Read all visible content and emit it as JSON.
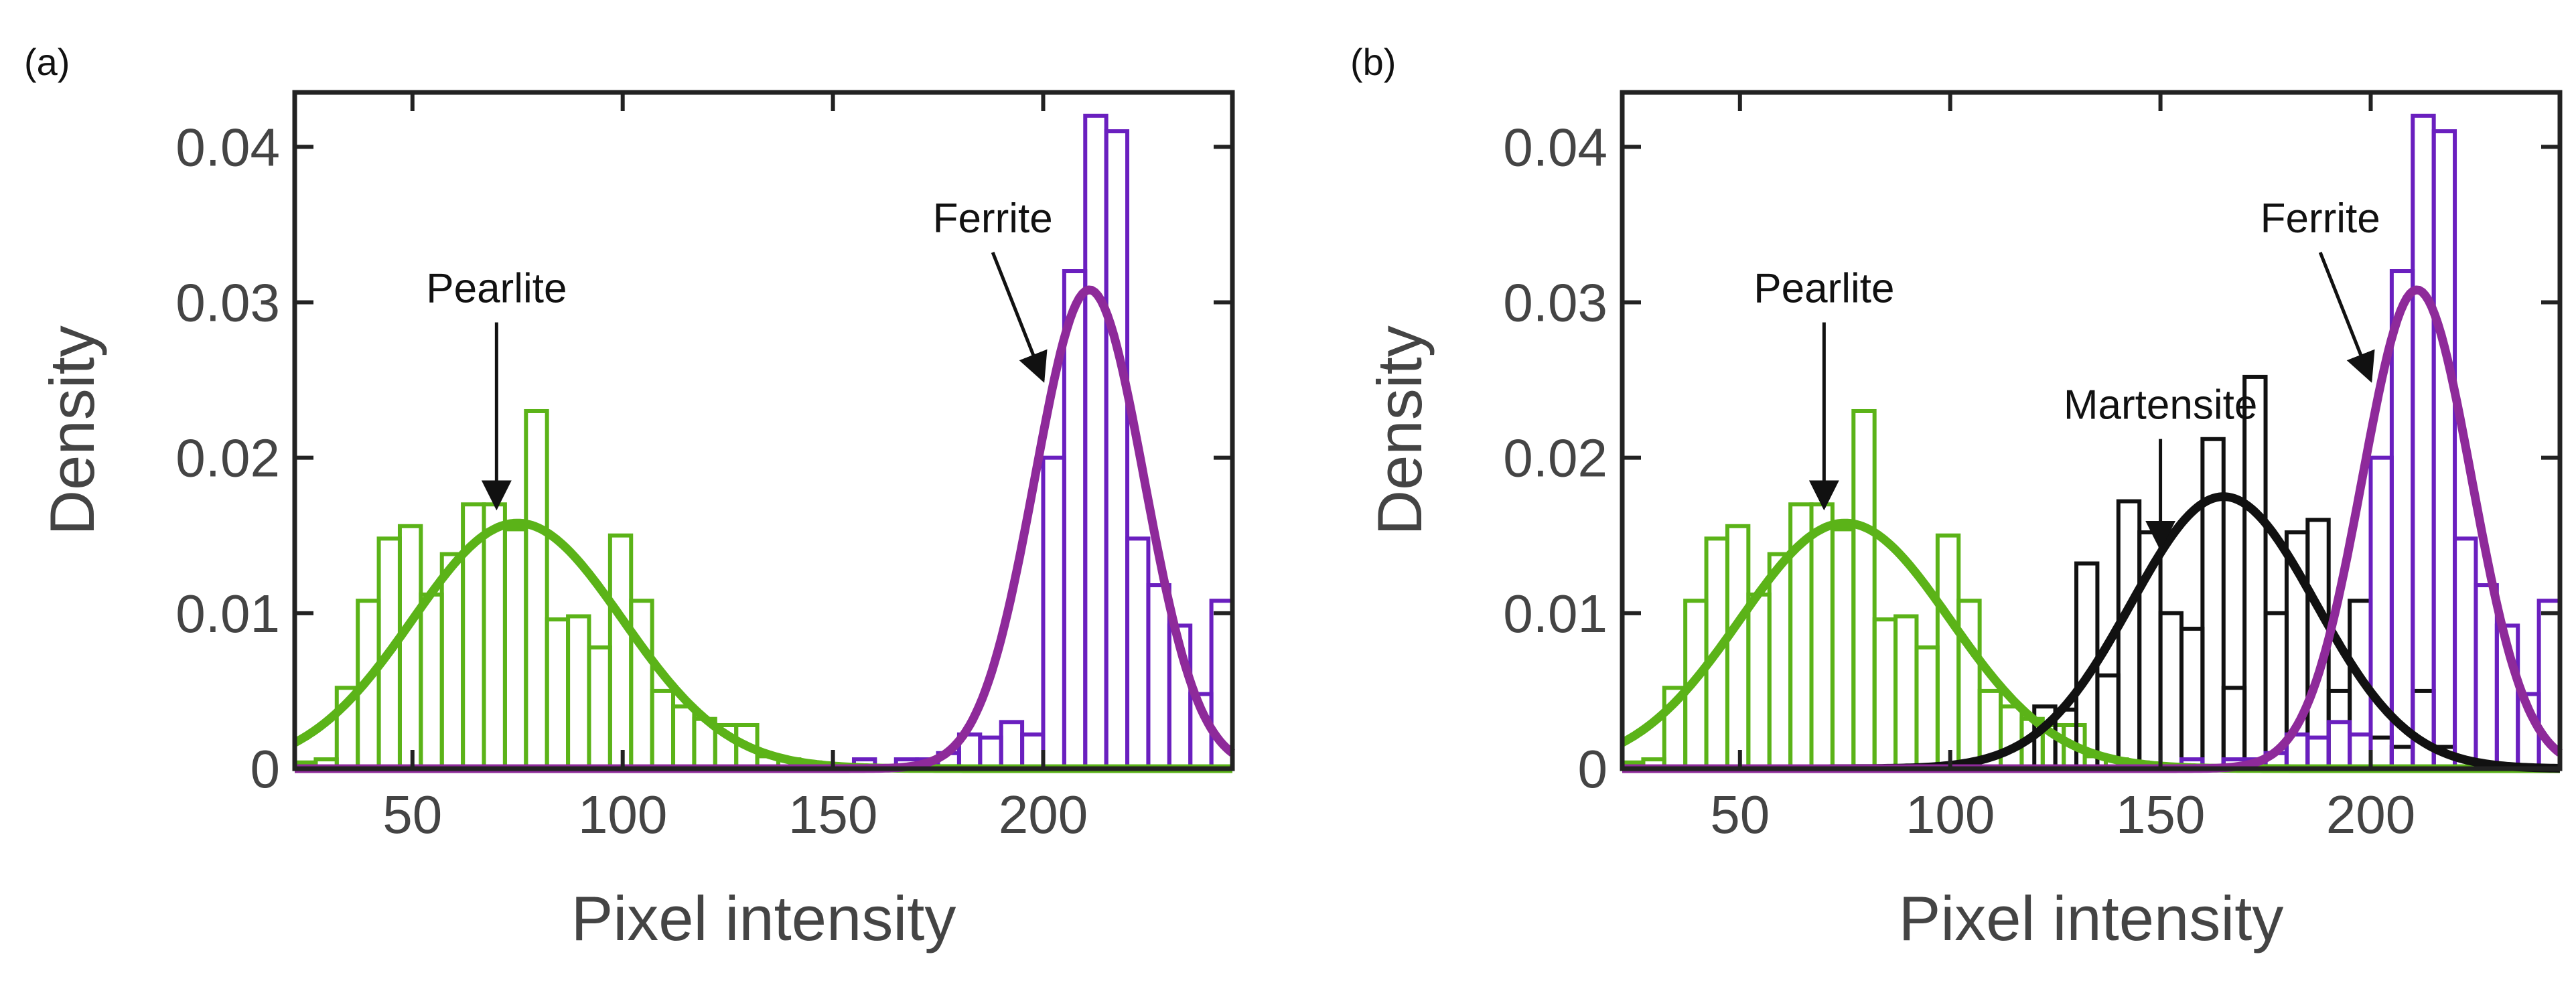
{
  "chart_data": [
    {
      "type": "histogram",
      "panel_label": "(a)",
      "xlabel": "Pixel intensity",
      "ylabel": "Density",
      "xlim": [
        22,
        245
      ],
      "ylim": [
        0,
        0.0435
      ],
      "xticks": [
        50,
        100,
        150,
        200
      ],
      "yticks": [
        0,
        0.01,
        0.02,
        0.03,
        0.04
      ],
      "ytick_labels": [
        "0",
        "0.01",
        "0.02",
        "0.03",
        "0.04"
      ],
      "grid": false,
      "series": [
        {
          "color": "#5bb318",
          "bins": [
            {
              "x0": 22,
              "x1": 27,
              "y": 0.0004
            },
            {
              "x0": 27,
              "x1": 32,
              "y": 0.0006
            },
            {
              "x0": 32,
              "x1": 37,
              "y": 0.0052
            },
            {
              "x0": 37,
              "x1": 42,
              "y": 0.0108
            },
            {
              "x0": 42,
              "x1": 47,
              "y": 0.0148
            },
            {
              "x0": 47,
              "x1": 52,
              "y": 0.0156
            },
            {
              "x0": 52,
              "x1": 57,
              "y": 0.0112
            },
            {
              "x0": 57,
              "x1": 62,
              "y": 0.0138
            },
            {
              "x0": 62,
              "x1": 67,
              "y": 0.017
            },
            {
              "x0": 67,
              "x1": 72,
              "y": 0.017
            },
            {
              "x0": 72,
              "x1": 77,
              "y": 0.0154
            },
            {
              "x0": 77,
              "x1": 82,
              "y": 0.023
            },
            {
              "x0": 82,
              "x1": 87,
              "y": 0.0096
            },
            {
              "x0": 87,
              "x1": 92,
              "y": 0.0098
            },
            {
              "x0": 92,
              "x1": 97,
              "y": 0.0078
            },
            {
              "x0": 97,
              "x1": 102,
              "y": 0.015
            },
            {
              "x0": 102,
              "x1": 107,
              "y": 0.0108
            },
            {
              "x0": 107,
              "x1": 112,
              "y": 0.005
            },
            {
              "x0": 112,
              "x1": 117,
              "y": 0.004
            },
            {
              "x0": 117,
              "x1": 122,
              "y": 0.0032
            },
            {
              "x0": 122,
              "x1": 127,
              "y": 0.0028
            },
            {
              "x0": 127,
              "x1": 132,
              "y": 0.0028
            },
            {
              "x0": 132,
              "x1": 137,
              "y": 0.0008
            },
            {
              "x0": 137,
              "x1": 142,
              "y": 0.0006
            },
            {
              "x0": 142,
              "x1": 147,
              "y": 0.0004
            }
          ],
          "fit": {
            "mean": 75,
            "sd": 25,
            "peak": 0.0158
          }
        },
        {
          "color": "#6a1fbf",
          "bins": [
            {
              "x0": 155,
              "x1": 160,
              "y": 0.0006
            },
            {
              "x0": 165,
              "x1": 170,
              "y": 0.0006
            },
            {
              "x0": 170,
              "x1": 175,
              "y": 0.0006
            },
            {
              "x0": 175,
              "x1": 180,
              "y": 0.001
            },
            {
              "x0": 180,
              "x1": 185,
              "y": 0.0022
            },
            {
              "x0": 185,
              "x1": 190,
              "y": 0.002
            },
            {
              "x0": 190,
              "x1": 195,
              "y": 0.003
            },
            {
              "x0": 195,
              "x1": 200,
              "y": 0.0022
            },
            {
              "x0": 200,
              "x1": 205,
              "y": 0.02
            },
            {
              "x0": 205,
              "x1": 210,
              "y": 0.032
            },
            {
              "x0": 210,
              "x1": 215,
              "y": 0.042
            },
            {
              "x0": 215,
              "x1": 220,
              "y": 0.041
            },
            {
              "x0": 220,
              "x1": 225,
              "y": 0.0148
            },
            {
              "x0": 225,
              "x1": 230,
              "y": 0.0118
            },
            {
              "x0": 230,
              "x1": 235,
              "y": 0.0092
            },
            {
              "x0": 235,
              "x1": 240,
              "y": 0.0048
            },
            {
              "x0": 240,
              "x1": 245,
              "y": 0.0108
            }
          ],
          "fit": {
            "mean": 211,
            "sd": 13,
            "peak": 0.0308
          }
        }
      ],
      "annotations": [
        {
          "text": "Pearlite",
          "tip_x": 70,
          "tip_y": 0.0168,
          "tail_x": 70,
          "tail_y": 0.03
        },
        {
          "text": "Ferrite",
          "tip_x": 200,
          "tip_y": 0.025,
          "tail_x": 188,
          "tail_y": 0.0345
        }
      ]
    },
    {
      "type": "histogram",
      "panel_label": "(b)",
      "xlabel": "Pixel intensity",
      "ylabel": "Density",
      "xlim": [
        22,
        245
      ],
      "ylim": [
        0,
        0.0435
      ],
      "xticks": [
        50,
        100,
        150,
        200
      ],
      "yticks": [
        0,
        0.01,
        0.02,
        0.03,
        0.04
      ],
      "ytick_labels": [
        "0",
        "0.01",
        "0.02",
        "0.03",
        "0.04"
      ],
      "grid": false,
      "series": [
        {
          "color": "#5bb318",
          "bins": [
            {
              "x0": 22,
              "x1": 27,
              "y": 0.0004
            },
            {
              "x0": 27,
              "x1": 32,
              "y": 0.0006
            },
            {
              "x0": 32,
              "x1": 37,
              "y": 0.0052
            },
            {
              "x0": 37,
              "x1": 42,
              "y": 0.0108
            },
            {
              "x0": 42,
              "x1": 47,
              "y": 0.0148
            },
            {
              "x0": 47,
              "x1": 52,
              "y": 0.0156
            },
            {
              "x0": 52,
              "x1": 57,
              "y": 0.0112
            },
            {
              "x0": 57,
              "x1": 62,
              "y": 0.0138
            },
            {
              "x0": 62,
              "x1": 67,
              "y": 0.017
            },
            {
              "x0": 67,
              "x1": 72,
              "y": 0.017
            },
            {
              "x0": 72,
              "x1": 77,
              "y": 0.0154
            },
            {
              "x0": 77,
              "x1": 82,
              "y": 0.023
            },
            {
              "x0": 82,
              "x1": 87,
              "y": 0.0096
            },
            {
              "x0": 87,
              "x1": 92,
              "y": 0.0098
            },
            {
              "x0": 92,
              "x1": 97,
              "y": 0.0078
            },
            {
              "x0": 97,
              "x1": 102,
              "y": 0.015
            },
            {
              "x0": 102,
              "x1": 107,
              "y": 0.0108
            },
            {
              "x0": 107,
              "x1": 112,
              "y": 0.005
            },
            {
              "x0": 112,
              "x1": 117,
              "y": 0.004
            },
            {
              "x0": 117,
              "x1": 122,
              "y": 0.0032
            },
            {
              "x0": 122,
              "x1": 127,
              "y": 0.0028
            },
            {
              "x0": 127,
              "x1": 132,
              "y": 0.0028
            },
            {
              "x0": 132,
              "x1": 137,
              "y": 0.0008
            },
            {
              "x0": 137,
              "x1": 142,
              "y": 0.0006
            },
            {
              "x0": 142,
              "x1": 147,
              "y": 0.0004
            }
          ],
          "fit": {
            "mean": 75,
            "sd": 25,
            "peak": 0.0158
          }
        },
        {
          "color": "#111111",
          "bins": [
            {
              "x0": 120,
              "x1": 125,
              "y": 0.004
            },
            {
              "x0": 125,
              "x1": 130,
              "y": 0.0038
            },
            {
              "x0": 130,
              "x1": 135,
              "y": 0.0132
            },
            {
              "x0": 135,
              "x1": 140,
              "y": 0.006
            },
            {
              "x0": 140,
              "x1": 145,
              "y": 0.0172
            },
            {
              "x0": 145,
              "x1": 150,
              "y": 0.0152
            },
            {
              "x0": 150,
              "x1": 155,
              "y": 0.01
            },
            {
              "x0": 155,
              "x1": 160,
              "y": 0.009
            },
            {
              "x0": 160,
              "x1": 165,
              "y": 0.0212
            },
            {
              "x0": 165,
              "x1": 170,
              "y": 0.0052
            },
            {
              "x0": 170,
              "x1": 175,
              "y": 0.0252
            },
            {
              "x0": 175,
              "x1": 180,
              "y": 0.01
            },
            {
              "x0": 180,
              "x1": 185,
              "y": 0.0152
            },
            {
              "x0": 185,
              "x1": 190,
              "y": 0.016
            },
            {
              "x0": 190,
              "x1": 195,
              "y": 0.005
            },
            {
              "x0": 195,
              "x1": 200,
              "y": 0.0108
            },
            {
              "x0": 200,
              "x1": 205,
              "y": 0.002
            },
            {
              "x0": 205,
              "x1": 210,
              "y": 0.0014
            },
            {
              "x0": 210,
              "x1": 215,
              "y": 0.005
            },
            {
              "x0": 215,
              "x1": 220,
              "y": 0.0014
            },
            {
              "x0": 220,
              "x1": 225,
              "y": 0.0006
            }
          ],
          "fit": {
            "mean": 165,
            "sd": 22,
            "peak": 0.0175
          }
        },
        {
          "color": "#6a1fbf",
          "bins": [
            {
              "x0": 155,
              "x1": 160,
              "y": 0.0006
            },
            {
              "x0": 165,
              "x1": 170,
              "y": 0.0006
            },
            {
              "x0": 170,
              "x1": 175,
              "y": 0.0006
            },
            {
              "x0": 175,
              "x1": 180,
              "y": 0.001
            },
            {
              "x0": 180,
              "x1": 185,
              "y": 0.0022
            },
            {
              "x0": 185,
              "x1": 190,
              "y": 0.002
            },
            {
              "x0": 190,
              "x1": 195,
              "y": 0.003
            },
            {
              "x0": 195,
              "x1": 200,
              "y": 0.0022
            },
            {
              "x0": 200,
              "x1": 205,
              "y": 0.02
            },
            {
              "x0": 205,
              "x1": 210,
              "y": 0.032
            },
            {
              "x0": 210,
              "x1": 215,
              "y": 0.042
            },
            {
              "x0": 215,
              "x1": 220,
              "y": 0.041
            },
            {
              "x0": 220,
              "x1": 225,
              "y": 0.0148
            },
            {
              "x0": 225,
              "x1": 230,
              "y": 0.0118
            },
            {
              "x0": 230,
              "x1": 235,
              "y": 0.0092
            },
            {
              "x0": 235,
              "x1": 240,
              "y": 0.0048
            },
            {
              "x0": 240,
              "x1": 245,
              "y": 0.0108
            }
          ],
          "fit": {
            "mean": 211,
            "sd": 13,
            "peak": 0.0308
          }
        }
      ],
      "annotations": [
        {
          "text": "Pearlite",
          "tip_x": 70,
          "tip_y": 0.0168,
          "tail_x": 70,
          "tail_y": 0.03
        },
        {
          "text": "Martensite",
          "tip_x": 150,
          "tip_y": 0.0142,
          "tail_x": 150,
          "tail_y": 0.0225
        },
        {
          "text": "Ferrite",
          "tip_x": 200,
          "tip_y": 0.025,
          "tail_x": 188,
          "tail_y": 0.0345
        }
      ]
    }
  ],
  "fit_colors": {
    "pearlite": "#5bb318",
    "ferrite": "#8e2a9a",
    "martensite": "#111111"
  }
}
